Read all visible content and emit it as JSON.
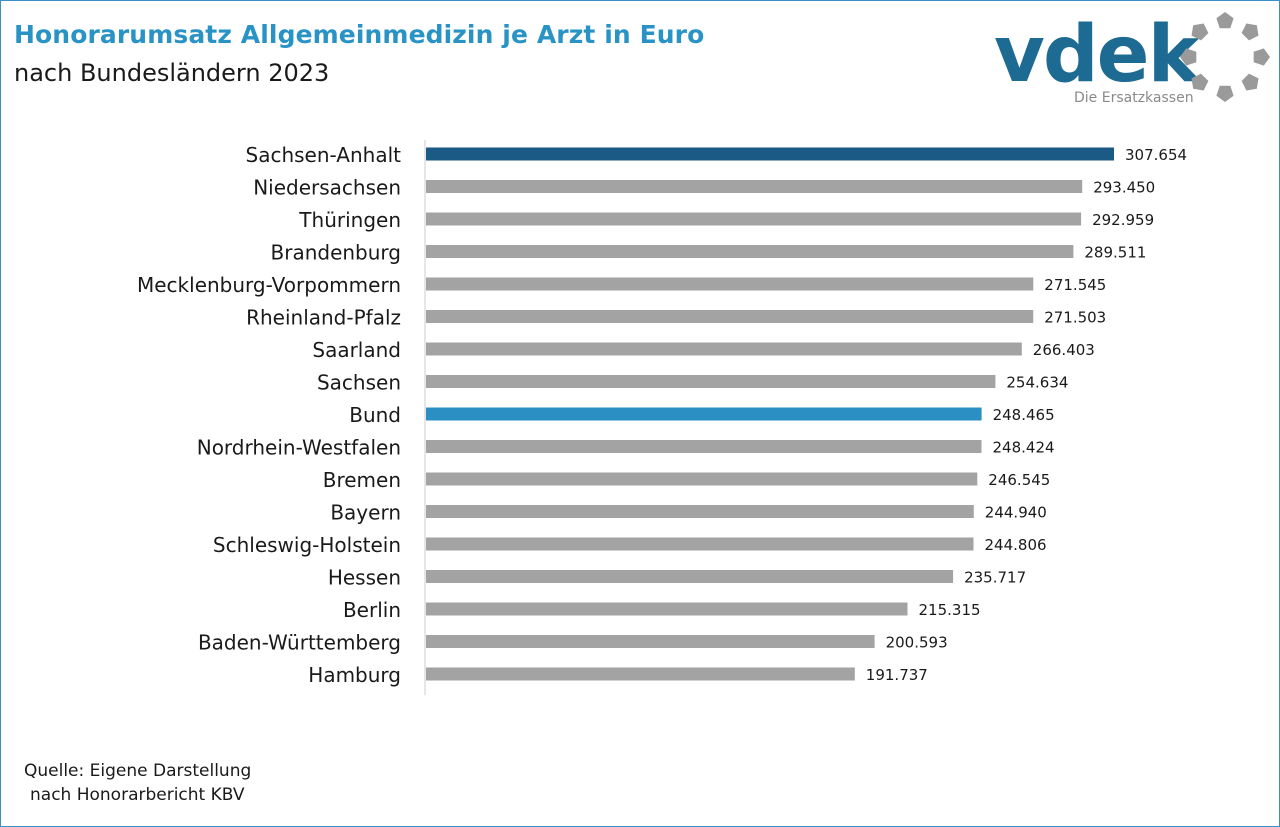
{
  "header": {
    "title": "Honorarumsatz Allgemeinmedizin je Arzt in Euro",
    "subtitle": "nach Bundesländern 2023"
  },
  "logo": {
    "wordmark": "vdek",
    "tagline": "Die Ersatzkassen",
    "color": "#1d6b93",
    "ring_color": "#9a9a9a"
  },
  "source": {
    "line1": "Quelle: Eigene Darstellung",
    "line2": "nach Honorarbericht KBV"
  },
  "chart_data": {
    "type": "bar",
    "orientation": "horizontal",
    "title": "Honorarumsatz Allgemeinmedizin je Arzt in Euro",
    "subtitle": "nach Bundesländern 2023",
    "xlabel": "",
    "ylabel": "",
    "grid": false,
    "legend": "none",
    "xlim": [
      0,
      307654
    ],
    "categories": [
      "Sachsen-Anhalt",
      "Niedersachsen",
      "Thüringen",
      "Brandenburg",
      "Mecklenburg-Vorpommern",
      "Rheinland-Pfalz",
      "Saarland",
      "Sachsen",
      "Bund",
      "Nordrhein-Westfalen",
      "Bremen",
      "Bayern",
      "Schleswig-Holstein",
      "Hessen",
      "Berlin",
      "Baden-Württemberg",
      "Hamburg"
    ],
    "values": [
      307654,
      293450,
      292959,
      289511,
      271545,
      271503,
      266403,
      254634,
      248465,
      248424,
      246545,
      244940,
      244806,
      235717,
      215315,
      200593,
      191737
    ],
    "value_labels": [
      "307.654",
      "293.450",
      "292.959",
      "289.511",
      "271.545",
      "271.503",
      "266.403",
      "254.634",
      "248.465",
      "248.424",
      "246.545",
      "244.940",
      "244.806",
      "235.717",
      "215.315",
      "200.593",
      "191.737"
    ],
    "colors": {
      "default": "#a3a3a3",
      "highlight_max": "#1a5a85",
      "highlight_bund": "#2c8fc3",
      "axis": "#cccccc"
    },
    "highlights": {
      "Sachsen-Anhalt": "highlight_max",
      "Bund": "highlight_bund"
    }
  }
}
